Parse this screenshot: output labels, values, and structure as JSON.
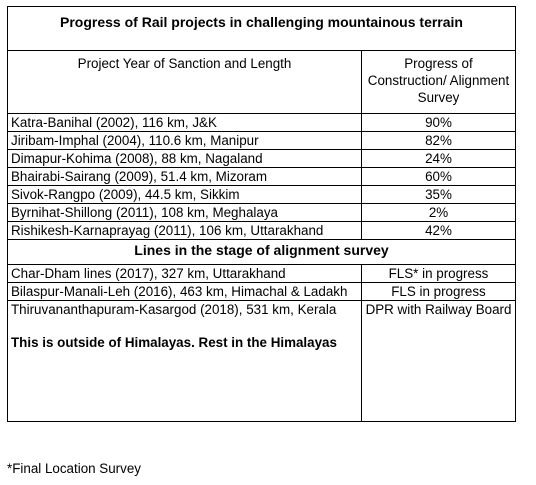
{
  "title": "Progress of Rail projects in challenging mountainous terrain",
  "header": {
    "col1": "Project  Year of Sanction and Length",
    "col2": "Progress of Construction/ Alignment Survey"
  },
  "projects": [
    {
      "name": "Katra-Banihal (2002), 116 km, J&K",
      "progress": "90%"
    },
    {
      "name": "Jiribam-Imphal (2004), 110.6 km, Manipur",
      "progress": "82%"
    },
    {
      "name": "Dimapur-Kohima (2008), 88 km, Nagaland",
      "progress": "24%"
    },
    {
      "name": "Bhairabi-Sairang (2009), 51.4 km, Mizoram",
      "progress": "60%"
    },
    {
      "name": "Sivok-Rangpo (2009), 44.5 km, Sikkim",
      "progress": "35%"
    },
    {
      "name": "Byrnihat-Shillong (2011), 108 km, Meghalaya",
      "progress": "2%"
    },
    {
      "name": "Rishikesh-Karnaprayag (2011), 106 km, Uttarakhand",
      "progress": "42%"
    }
  ],
  "survey_heading": "Lines in the stage of alignment survey",
  "survey_lines": [
    {
      "name": "Char-Dham lines (2017), 327 km, Uttarakhand",
      "status": "FLS* in progress"
    },
    {
      "name": "Bilaspur-Manali-Leh (2016), 463 km, Himachal & Ladakh",
      "status": "FLS in progress"
    },
    {
      "name": "Thiruvananthapuram-Kasargod (2018), 531 km, Kerala",
      "status": "DPR with Railway Board"
    }
  ],
  "note": "This is outside of Himalayas. Rest in the Himalayas",
  "footnote": "*Final Location Survey"
}
